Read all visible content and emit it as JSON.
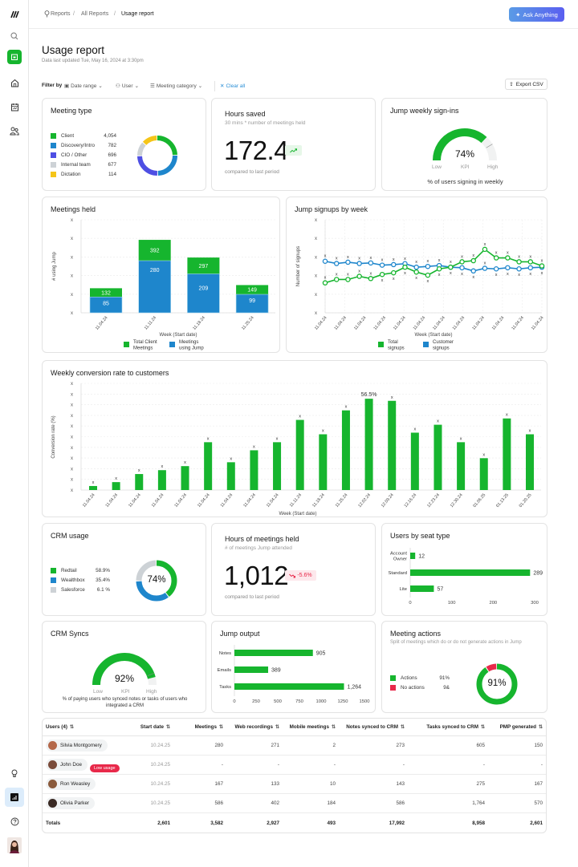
{
  "colors": {
    "green": "#16b52e",
    "blue": "#1e86cc",
    "purple": "#4e4fe3",
    "gray": "#cdd2d6",
    "yellow": "#f5c518",
    "red": "#e8294a",
    "accent": "#5a5ff0"
  },
  "sidebar": {
    "icons": [
      "logo-icon",
      "search-icon",
      "calendar-icon",
      "home-icon",
      "calendar-chart-icon",
      "users-icon",
      "lightbulb-icon",
      "reports-icon",
      "help-icon",
      "avatar"
    ]
  },
  "breadcrumb": [
    "Reports",
    "All Reports",
    "Usage report"
  ],
  "ask_button": "Ask Anything",
  "page": {
    "title": "Usage report",
    "subtitle": "Data last updated Tue, May 16, 2024 at 3:30pm"
  },
  "filters": {
    "label": "Filter by",
    "date": "Date range",
    "user": "User",
    "category": "Meeting category",
    "clear": "Clear all",
    "export": "Export CSV"
  },
  "meeting_type": {
    "title": "Meeting type",
    "items": [
      {
        "label": "Client",
        "value": "4,054",
        "color": "#16b52e"
      },
      {
        "label": "Discovery/Intro",
        "value": "782",
        "color": "#1e86cc"
      },
      {
        "label": "CIO / Other",
        "value": "696",
        "color": "#4e4fe3"
      },
      {
        "label": "Internal team",
        "value": "677",
        "color": "#cdd2d6"
      },
      {
        "label": "Dictation",
        "value": "114",
        "color": "#f5c518"
      }
    ]
  },
  "hours_saved": {
    "title": "Hours saved",
    "subtitle": "30 mins * number of meetings held",
    "value": "172.4",
    "trend": "up",
    "compare": "compared to last period"
  },
  "signins": {
    "title": "Jump weekly sign-ins",
    "value": "74%",
    "percent": 74,
    "low": "Low",
    "kpi": "KPI",
    "high": "High",
    "caption": "% of users signing in weekly"
  },
  "meetings_held": {
    "title": "Meetings held",
    "ylabel": "# using Jump",
    "xlabel": "Week (Start date)",
    "y_tick_labels": [
      "x",
      "x",
      "x",
      "x",
      "x",
      "x"
    ],
    "ylim": [
      0,
      500
    ],
    "categories": [
      "11.04.24",
      "11.11.24",
      "11.18.24",
      "11.25.24"
    ],
    "series": [
      {
        "name": "Total Client Meetings",
        "values": [
          132,
          392,
          297,
          149
        ],
        "color": "#16b52e"
      },
      {
        "name": "Meetings using Jump",
        "values": [
          85,
          280,
          209,
          99
        ],
        "color": "#1e86cc"
      }
    ],
    "legend": [
      "Total Client",
      "Meetings",
      "Meetings",
      "using Jump"
    ]
  },
  "signups": {
    "title": "Jump signups by week",
    "ylabel": "Number of signups",
    "xlabel": "Week (Start date)",
    "y_tick_labels": [
      "x",
      "x",
      "x",
      "x",
      "x",
      "x"
    ],
    "ylim": [
      0,
      5
    ],
    "point_label": "x",
    "x_tick_labels": [
      "11.04.24",
      "11.04.24",
      "11.04.24",
      "11.04.24",
      "11.04.24",
      "11.04.24",
      "11.04.24",
      "11.04.24",
      "11.04.24",
      "11.04.24",
      "11.04.24",
      "11.04.24"
    ],
    "series": [
      {
        "name": "Total signups",
        "color": "#16b52e",
        "values": [
          1.61,
          1.79,
          1.79,
          1.96,
          1.84,
          2.06,
          2.15,
          2.45,
          2.19,
          2.02,
          2.36,
          2.45,
          2.74,
          2.8,
          3.41,
          2.95,
          2.95,
          2.74,
          2.74,
          2.52
        ]
      },
      {
        "name": "Customer signups",
        "color": "#1e86cc",
        "values": [
          2.77,
          2.65,
          2.72,
          2.65,
          2.68,
          2.56,
          2.59,
          2.64,
          2.45,
          2.49,
          2.54,
          2.45,
          2.42,
          2.25,
          2.39,
          2.36,
          2.42,
          2.36,
          2.42,
          2.45
        ]
      }
    ],
    "legend": [
      "Total",
      "signups",
      "Customer",
      "signups"
    ]
  },
  "conversion": {
    "title": "Weekly conversion rate to customers",
    "ylabel": "Conversion rate (%)",
    "xlabel": "Week (Start date)",
    "y_tick_labels": [
      "x",
      "x",
      "x",
      "x",
      "x",
      "x",
      "x",
      "x",
      "x",
      "x",
      "x"
    ],
    "ylim": [
      0,
      66
    ],
    "point_label": "x",
    "highlight_label": "56.5%",
    "categories": [
      "11.04.24",
      "11.04.24",
      "11.04.24",
      "11.04.24",
      "11.04.24",
      "11.04.24",
      "11.04.24",
      "11.04.24",
      "11.04.24",
      "11.11.24",
      "11.18.24",
      "11.25.24",
      "12.02.24",
      "12.09.24",
      "12.16.24",
      "12.23.24",
      "12.30.24",
      "01.06.25",
      "01.13.25",
      "01.20.25"
    ],
    "values": [
      2.5,
      4.9,
      9.9,
      12.3,
      14.8,
      29.6,
      17.2,
      24.6,
      29.6,
      43.4,
      34.5,
      49.3,
      56.5,
      55.2,
      35.5,
      40.4,
      29.6,
      19.7,
      44.3,
      34.5
    ]
  },
  "crm_usage": {
    "title": "CRM usage",
    "center": "74%",
    "items": [
      {
        "label": "Redtail",
        "value": "58.9%",
        "color": "#16b52e"
      },
      {
        "label": "Wealthbox",
        "value": "35.4%",
        "color": "#1e86cc"
      },
      {
        "label": "Salesforce",
        "value": "6.1 %",
        "color": "#cdd2d6"
      }
    ]
  },
  "hours_meetings": {
    "title": "Hours of meetings held",
    "subtitle": "# of meetings Jump attended",
    "value": "1,012",
    "change": "-5.6%",
    "compare": "compared to last period"
  },
  "seat_type": {
    "title": "Users by seat type",
    "categories": [
      "Account Owner",
      "Standard",
      "Lite"
    ],
    "values": [
      12,
      289,
      57
    ],
    "value_labels": [
      "12",
      "289",
      "57"
    ],
    "xlim": [
      0,
      300
    ],
    "ticks": [
      "0",
      "100",
      "200",
      "300"
    ]
  },
  "crm_syncs": {
    "title": "CRM Syncs",
    "value": "92%",
    "percent": 92,
    "low": "Low",
    "kpi": "KPI",
    "high": "High",
    "caption": "% of paying users who synced notes or tasks of users who integrated a CRM"
  },
  "jump_output": {
    "title": "Jump output",
    "categories": [
      "Notes",
      "Emails",
      "Tasks"
    ],
    "values": [
      905,
      389,
      1264
    ],
    "value_labels": [
      "905",
      "389",
      "1,264"
    ],
    "xlim": [
      0,
      1500
    ],
    "ticks": [
      "0",
      "250",
      "500",
      "750",
      "1000",
      "1250",
      "1500"
    ]
  },
  "meeting_actions": {
    "title": "Meeting actions",
    "subtitle": "Split of meetings which do or do not generate actions in Jump",
    "center": "91%",
    "items": [
      {
        "label": "Actions",
        "value": "91%",
        "percent": 91,
        "color": "#16b52e"
      },
      {
        "label": "No actions",
        "value": "9&",
        "percent": 9,
        "color": "#e8294a"
      }
    ]
  },
  "table": {
    "headers": [
      "Users (4)",
      "Start date",
      "Meetings",
      "Web recordings",
      "Mobile meetings",
      "Notes synced to CRM",
      "Tasks synced to CRM",
      "PMP generated"
    ],
    "rows": [
      {
        "name": "Silvia Montgomery",
        "badge": "",
        "cells": [
          "10.24.25",
          "280",
          "271",
          "2",
          "273",
          "605",
          "150"
        ]
      },
      {
        "name": "John Doe",
        "badge": "Low usage",
        "cells": [
          "10.24.25",
          "-",
          "-",
          "-",
          "-",
          "-",
          "-"
        ]
      },
      {
        "name": "Ron Weasley",
        "badge": "",
        "cells": [
          "10.24.25",
          "167",
          "133",
          "10",
          "143",
          "275",
          "167"
        ]
      },
      {
        "name": "Olivia Parker",
        "badge": "",
        "cells": [
          "10.24.25",
          "586",
          "402",
          "184",
          "586",
          "1,764",
          "570"
        ]
      }
    ],
    "totals": {
      "label": "Totals",
      "cells": [
        "2,601",
        "3,582",
        "2,927",
        "493",
        "17,992",
        "8,958",
        "2,601"
      ]
    }
  }
}
